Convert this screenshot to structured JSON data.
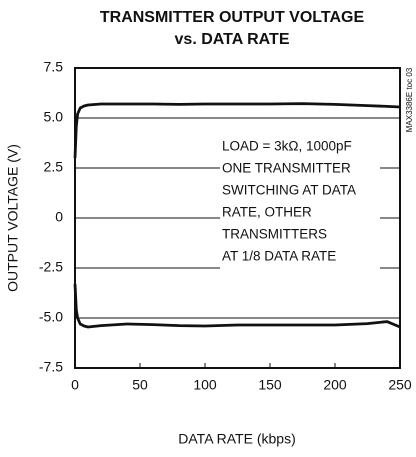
{
  "chart_data": {
    "type": "line",
    "title": [
      "TRANSMITTER OUTPUT VOLTAGE",
      "vs. DATA RATE"
    ],
    "x_label": "DATA RATE (kbps)",
    "y_label": "OUTPUT VOLTAGE (V)",
    "side_note": "MAX3386E toc 03",
    "annotation": [
      "LOAD = 3kΩ, 1000pF",
      "ONE TRANSMITTER",
      "SWITCHING AT DATA",
      "RATE, OTHER",
      "TRANSMITTERS",
      "AT 1/8 DATA RATE"
    ],
    "x": [
      0,
      1,
      2,
      4,
      7,
      10,
      20,
      40,
      60,
      80,
      100,
      125,
      150,
      175,
      200,
      225,
      240,
      250
    ],
    "series": [
      {
        "color": "#111111",
        "values": [
          3.0,
          4.6,
          5.2,
          5.5,
          5.6,
          5.65,
          5.7,
          5.7,
          5.7,
          5.68,
          5.7,
          5.7,
          5.7,
          5.72,
          5.68,
          5.62,
          5.58,
          5.55
        ]
      },
      {
        "color": "#111111",
        "values": [
          -3.3,
          -4.6,
          -5.0,
          -5.3,
          -5.4,
          -5.45,
          -5.38,
          -5.3,
          -5.33,
          -5.38,
          -5.4,
          -5.35,
          -5.35,
          -5.35,
          -5.35,
          -5.28,
          -5.18,
          -5.45
        ]
      }
    ],
    "xlim": [
      0,
      250
    ],
    "xticks": [
      0,
      50,
      100,
      150,
      200,
      250
    ],
    "ylim": [
      -7.5,
      7.5
    ],
    "yticks": [
      7.5,
      {
        "value": 5,
        "label": "5.0"
      },
      2.5,
      0,
      -2.5,
      {
        "value": -5,
        "label": "-5.0"
      },
      -7.5
    ],
    "grid": true
  }
}
